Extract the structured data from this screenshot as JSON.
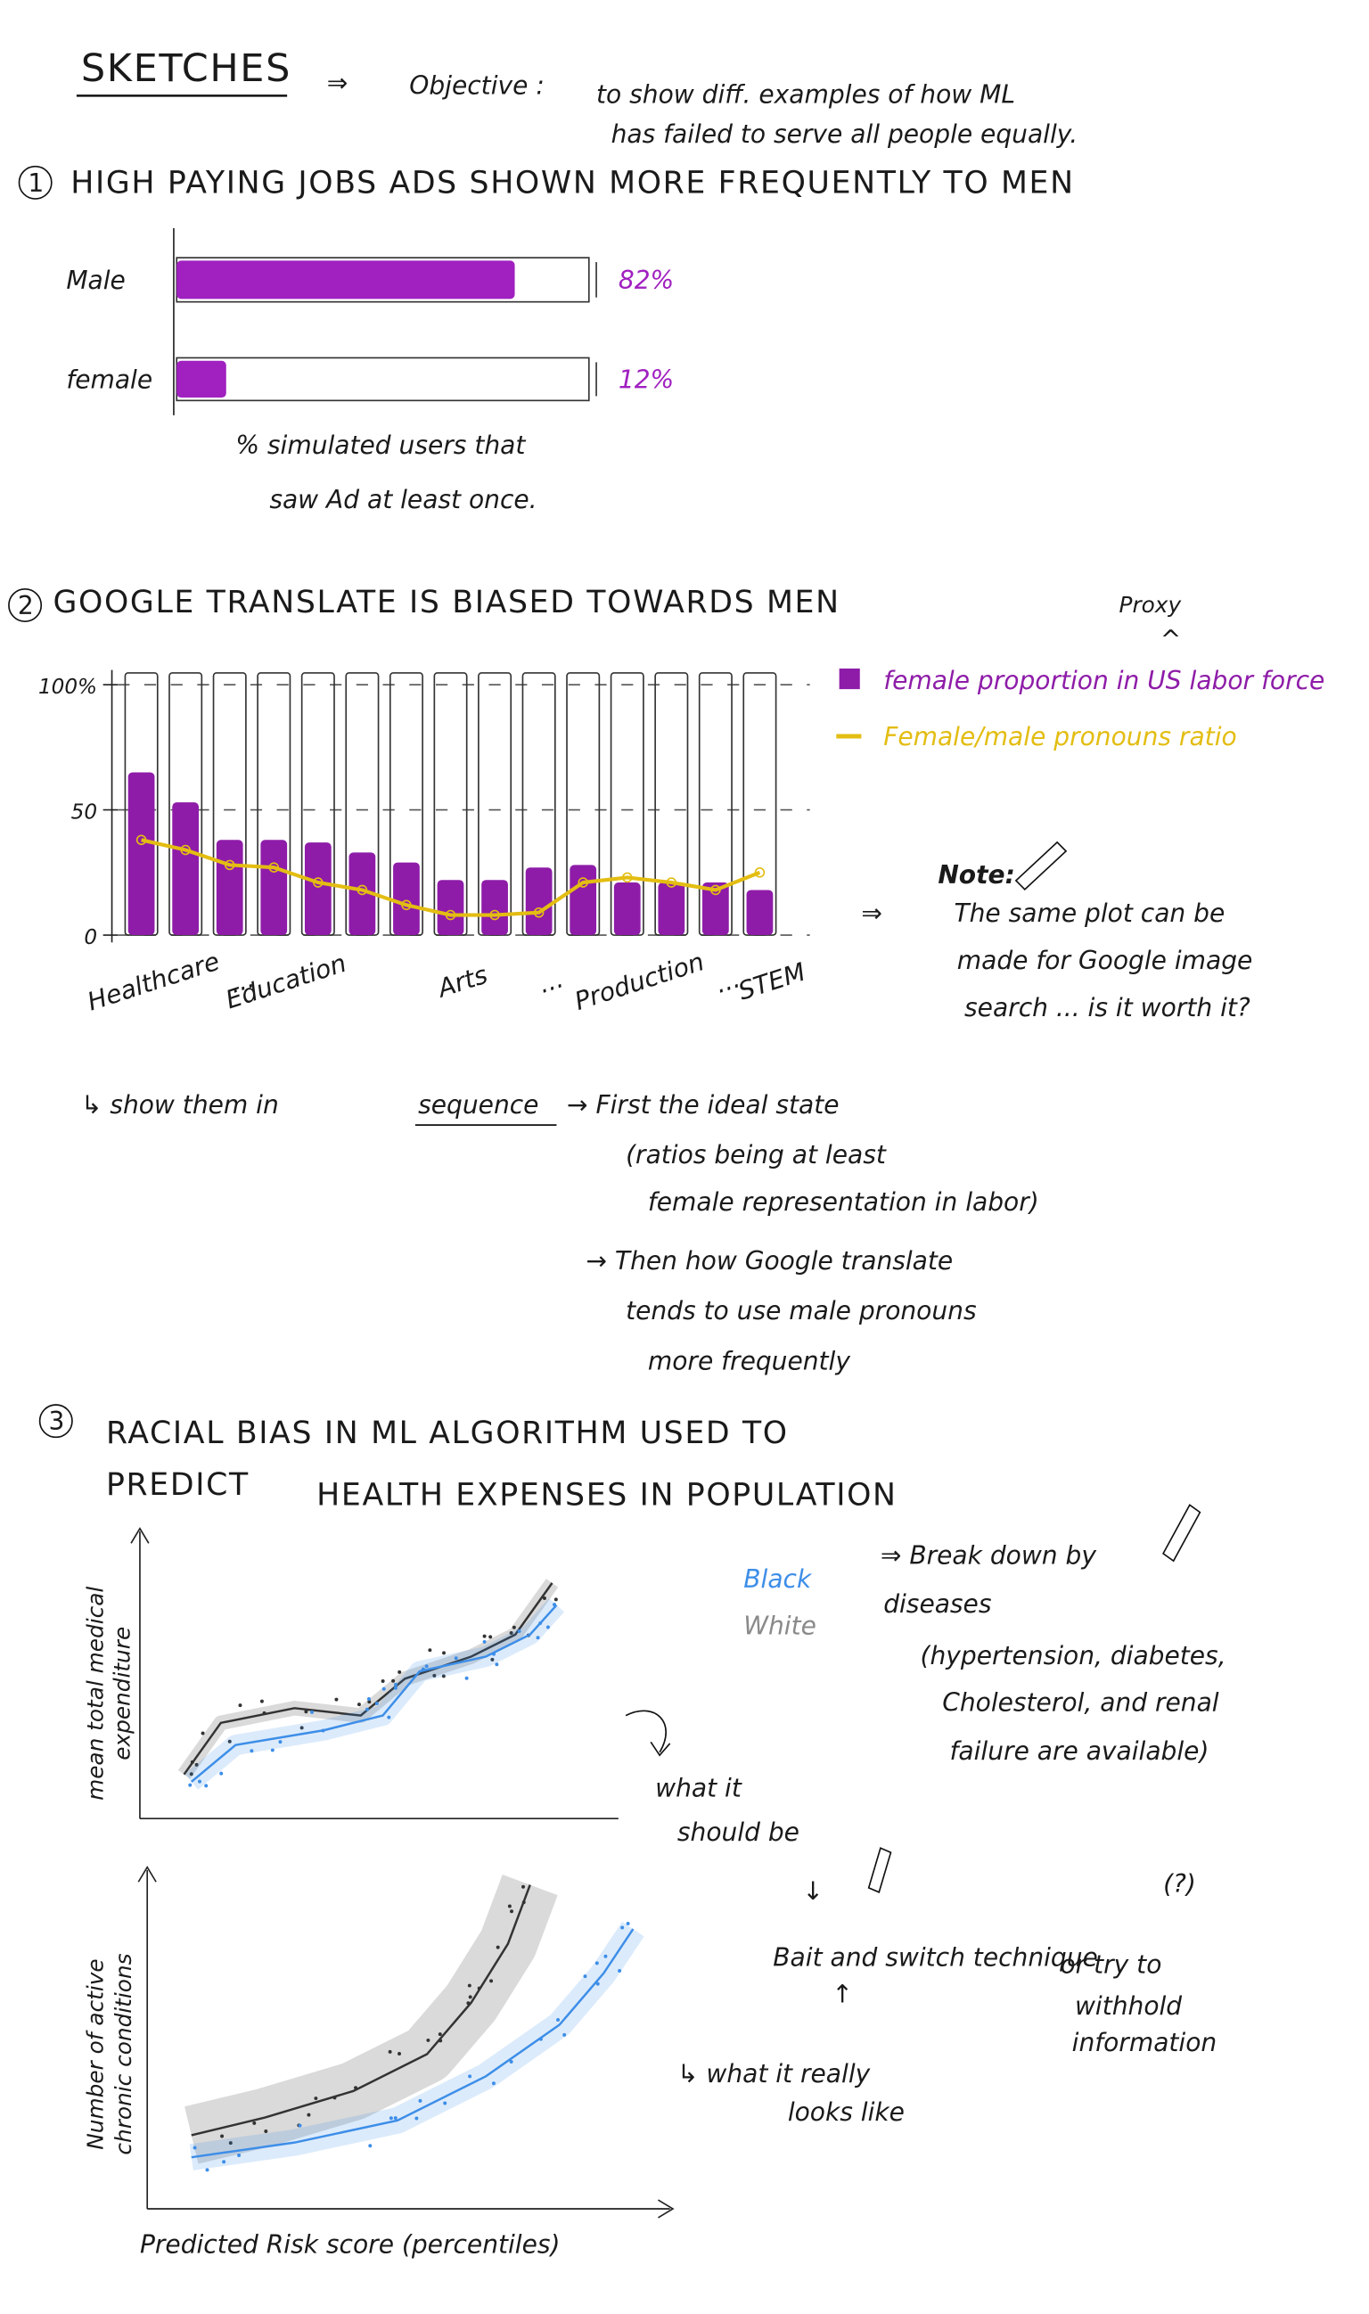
{
  "header": {
    "title": "SKETCHES",
    "arrow": "⇒",
    "objective_label": "Objective :",
    "objective": [
      "to show diff. examples of how ML",
      "has failed to serve all people equally."
    ]
  },
  "sections": [
    {
      "number": "1",
      "title": [
        "HIGH PAYING JOBS ADS SHOWN MORE FREQUENTLY TO MEN"
      ]
    },
    {
      "number": "2",
      "title": [
        "GOOGLE TRANSLATE IS BIASED TOWARDS MEN"
      ]
    },
    {
      "number": "3",
      "title": [
        "RACIAL BIAS IN ML ALGORITHM USED TO",
        "PREDICT",
        "HEALTH EXPENSES IN POPULATION"
      ]
    }
  ],
  "chart_data": [
    {
      "type": "bar",
      "orientation": "horizontal",
      "categories": [
        "Male",
        "female"
      ],
      "values": [
        82,
        12
      ],
      "value_labels": [
        "82%",
        "12%"
      ],
      "xlim": [
        0,
        100
      ],
      "color": "#a020c0",
      "caption": [
        "% simulated users that",
        "saw Ad at least once."
      ]
    },
    {
      "type": "bar",
      "categories": [
        "Healthcare",
        null,
        "...",
        "Education",
        null,
        null,
        null,
        "Arts",
        null,
        "...",
        null,
        "Production",
        null,
        "...",
        "STEM"
      ],
      "series": [
        {
          "name": "female proportion in US labor force",
          "type": "bar",
          "color": "#8e1ca8",
          "values": [
            65,
            53,
            38,
            38,
            37,
            33,
            29,
            22,
            22,
            27,
            28,
            21,
            21,
            21,
            18
          ]
        },
        {
          "name": "Female/male pronouns ratio",
          "type": "line",
          "color": "#e3bd12",
          "values": [
            38,
            34,
            28,
            27,
            21,
            18,
            12,
            8,
            8,
            9,
            21,
            23,
            21,
            18,
            25
          ]
        }
      ],
      "ylim": [
        0,
        100
      ],
      "yticks": [
        0,
        50,
        {
          "value": 100,
          "label": "100%"
        }
      ],
      "grid": true,
      "legend_annotation": [
        "Proxy",
        "^"
      ]
    }
  ],
  "note": {
    "heading": "Note:",
    "arrow": "⇒",
    "lines": [
      "The same plot can be",
      "made for Google image",
      "search ... is it worth it?"
    ]
  },
  "sequence": {
    "lines": [
      "↳ show them in",
      "sequence",
      "→ First the ideal state",
      "(ratios being at least",
      "female representation in labor)",
      "→ Then how Google translate",
      "tends to use male pronouns",
      "more frequently"
    ]
  },
  "plots": {
    "legend": [
      {
        "name": "Black",
        "color": "#3d8ee8"
      },
      {
        "name": "White",
        "color": "#8a8a8a"
      }
    ],
    "upper_y_label": [
      "mean total medical",
      "expenditure"
    ],
    "lower_y_label": [
      "Number of active",
      "chronic conditions"
    ],
    "x_label": "Predicted Risk score (percentiles)"
  },
  "side_notes": {
    "breakdown": [
      "⇒ Break down by",
      "diseases",
      "(hypertension, diabetes,",
      "Cholesterol, and renal",
      "failure are available)"
    ],
    "should_be": [
      "what it",
      "should be",
      "↓"
    ],
    "bait": [
      "Bait and switch technique",
      "(?)",
      "↑"
    ],
    "withhold": [
      "or try to",
      "withhold",
      "information"
    ],
    "really": [
      "↳ what it really",
      "looks like"
    ]
  }
}
